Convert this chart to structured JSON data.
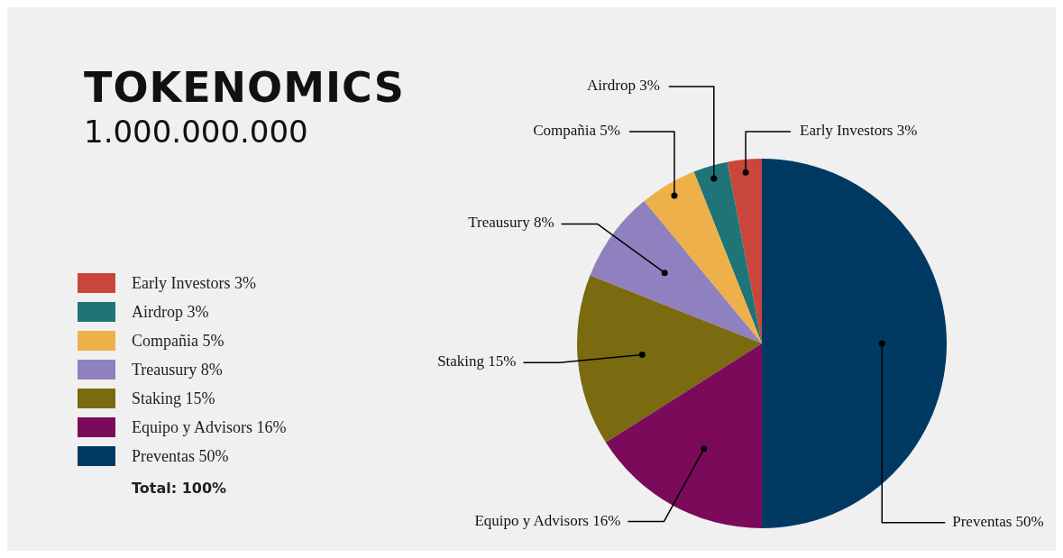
{
  "chart_data": {
    "type": "pie",
    "title": "TOKENOMICS",
    "subtitle": "1.000.000.000",
    "categories": [
      "Early Investors",
      "Airdrop",
      "Compañia",
      "Treausury",
      "Staking",
      "Equipo y Advisors",
      "Preventas"
    ],
    "values": [
      3,
      3,
      5,
      8,
      15,
      16,
      50
    ],
    "value_labels": [
      "3%",
      "3%",
      "5%",
      "8%",
      "15%",
      "16%",
      "50%"
    ],
    "colors": [
      "#c8473a",
      "#1f7477",
      "#eeb14a",
      "#8f80bf",
      "#7a6a10",
      "#7b0a5a",
      "#003a63"
    ],
    "legend": "left",
    "annotations": [
      "Total: 100%"
    ]
  }
}
